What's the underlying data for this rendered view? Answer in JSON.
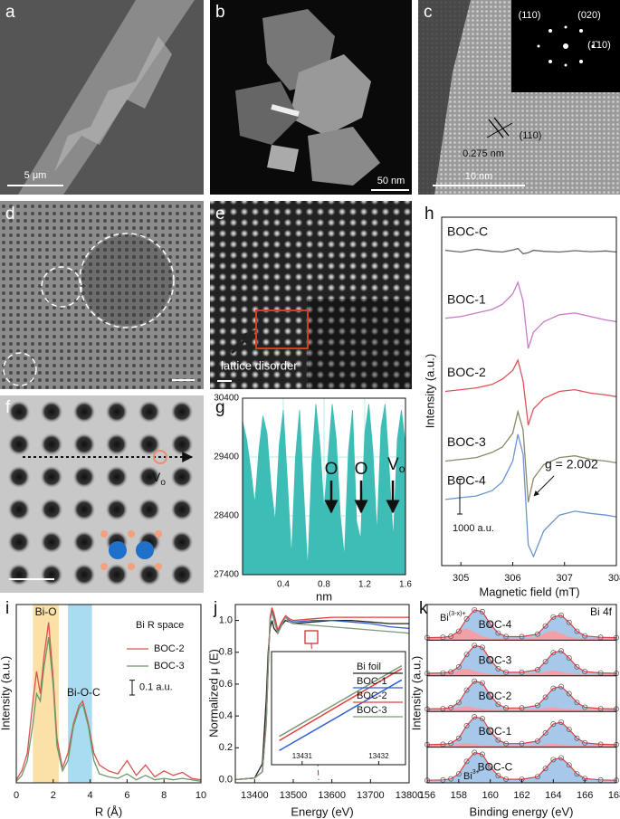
{
  "panels": {
    "a": {
      "letter": "a",
      "scale_label": "5 μm"
    },
    "b": {
      "letter": "b",
      "scale_label": "50 nm"
    },
    "c": {
      "letter": "c",
      "scale_label": "10 nm",
      "fft_labels": [
        "(110)",
        "(020)",
        "(1̄10)"
      ],
      "plane": "(110)",
      "spacing": "0.275 nm"
    },
    "d": {
      "letter": "d"
    },
    "e": {
      "letter": "e",
      "annotation": "lattice disorder"
    },
    "f": {
      "letter": "f",
      "vacancy": {
        "text": "V",
        "sub": "o"
      }
    }
  },
  "chart_data": [
    {
      "type": "area",
      "letter": "g",
      "x_label": "nm",
      "color": "#3dbdb5",
      "grid": true,
      "xlim": [
        0,
        1.6
      ],
      "ylim": [
        27400,
        30400
      ],
      "xticks": [
        0.4,
        0.8,
        1.2,
        1.6
      ],
      "yticks": [
        27400,
        28400,
        29400,
        30400
      ],
      "x": [
        0,
        0.04,
        0.08,
        0.12,
        0.16,
        0.2,
        0.24,
        0.28,
        0.32,
        0.36,
        0.4,
        0.44,
        0.48,
        0.52,
        0.56,
        0.6,
        0.64,
        0.68,
        0.72,
        0.76,
        0.8,
        0.84,
        0.88,
        0.92,
        0.96,
        1,
        1.04,
        1.08,
        1.12,
        1.16,
        1.2,
        1.24,
        1.28,
        1.32,
        1.36,
        1.4,
        1.44,
        1.48,
        1.52,
        1.56,
        1.6
      ],
      "values": [
        30000,
        29700,
        29200,
        28600,
        29500,
        30100,
        29800,
        28900,
        28300,
        29600,
        30200,
        29000,
        27700,
        29400,
        30200,
        28800,
        27500,
        29300,
        30300,
        29600,
        28500,
        29400,
        30300,
        29700,
        28400,
        27700,
        29500,
        30200,
        28300,
        28000,
        29800,
        30300,
        29500,
        28100,
        29900,
        30300,
        29200,
        28000,
        29700,
        30200,
        29600
      ],
      "annotations": [
        {
          "text": "O"
        },
        {
          "text": "O"
        },
        {
          "text": "V",
          "sub": "o"
        }
      ]
    },
    {
      "type": "line",
      "letter": "h",
      "x_label": "Magnetic field (mT)",
      "y_label": "Intensity (a.u.)",
      "xlim": [
        304.63,
        308
      ],
      "ylim": [
        0,
        10000
      ],
      "xticks": [
        305,
        306,
        307,
        308
      ],
      "x": [
        304.7,
        305.0,
        305.3,
        305.6,
        305.8,
        306.0,
        306.1,
        306.2,
        306.3,
        306.4,
        306.6,
        306.9,
        307.2,
        307.5,
        307.8,
        308.0
      ],
      "series": [
        {
          "name": "BOC-C",
          "color": "#666666",
          "values": [
            9050,
            9000,
            9080,
            9020,
            9000,
            9060,
            9100,
            8950,
            8980,
            9050,
            9020,
            9000,
            9040,
            9010,
            9030,
            9000
          ]
        },
        {
          "name": "BOC-1",
          "color": "#c87cc8",
          "values": [
            7100,
            7150,
            7250,
            7350,
            7500,
            7800,
            8130,
            7600,
            6230,
            6700,
            7000,
            7200,
            7250,
            7150,
            7050,
            7000
          ]
        },
        {
          "name": "BOC-2",
          "color": "#e0525a",
          "values": [
            5000,
            5050,
            5100,
            5200,
            5350,
            5600,
            5900,
            5300,
            4030,
            4500,
            4800,
            5000,
            5050,
            4950,
            4900,
            4850
          ]
        },
        {
          "name": "BOC-3",
          "color": "#8a8a6a",
          "values": [
            3000,
            3050,
            3100,
            3250,
            3400,
            3800,
            4420,
            3900,
            1820,
            2500,
            2900,
            3100,
            3150,
            3050,
            3000,
            2950
          ]
        },
        {
          "name": "BOC-4",
          "color": "#6a94d0",
          "values": [
            1900,
            1950,
            2000,
            2150,
            2400,
            3000,
            3770,
            3200,
            600,
            260,
            1000,
            1450,
            1560,
            1500,
            1450,
            1400
          ]
        }
      ],
      "annotation": "g = 2.002",
      "scale_bar": {
        "value": 1000,
        "label": "1000 a.u."
      }
    },
    {
      "type": "line",
      "letter": "i",
      "title": "Bi R space",
      "x_label": "R (Å)",
      "y_label": "Intensity (a.u.)",
      "xlim": [
        0,
        10
      ],
      "ylim": [
        0,
        1.2
      ],
      "xticks": [
        0,
        2,
        4,
        6,
        8,
        10
      ],
      "x": [
        0,
        0.3,
        0.6,
        0.9,
        1.1,
        1.3,
        1.5,
        1.75,
        2.0,
        2.2,
        2.5,
        2.8,
        3.1,
        3.4,
        3.6,
        3.9,
        4.2,
        4.5,
        5,
        5.5,
        6,
        6.5,
        7,
        7.5,
        8,
        8.5,
        9,
        9.5,
        10
      ],
      "series": [
        {
          "name": "BOC-2",
          "color": "#d9534f",
          "values": [
            0.02,
            0.08,
            0.2,
            0.55,
            0.75,
            0.6,
            0.85,
            1.08,
            0.7,
            0.3,
            0.1,
            0.2,
            0.4,
            0.52,
            0.55,
            0.4,
            0.2,
            0.12,
            0.08,
            0.06,
            0.15,
            0.05,
            0.12,
            0.04,
            0.08,
            0.05,
            0.07,
            0.03,
            0.02
          ]
        },
        {
          "name": "BOC-3",
          "color": "#6a9a6a",
          "values": [
            0.01,
            0.05,
            0.15,
            0.4,
            0.6,
            0.55,
            0.78,
            0.98,
            0.65,
            0.25,
            0.08,
            0.15,
            0.38,
            0.5,
            0.53,
            0.38,
            0.15,
            0.06,
            0.04,
            0.03,
            0.06,
            0.02,
            0.05,
            0.02,
            0.03,
            0.02,
            0.03,
            0.02,
            0.01
          ]
        }
      ],
      "regions": [
        {
          "label": "Bi-O",
          "range": [
            0.9,
            2.3
          ],
          "color": "#fbe0a8"
        },
        {
          "label": "Bi-O-C",
          "range": [
            2.8,
            4.1
          ],
          "color": "#a9dcf0"
        }
      ],
      "scale_bar": {
        "value": 0.1,
        "label": "0.1 a.u."
      }
    },
    {
      "type": "line",
      "letter": "j",
      "x_label": "Energy (eV)",
      "y_label": "Normalized μ (E)",
      "xlim": [
        13350,
        13800
      ],
      "ylim": [
        -0.02,
        1.1
      ],
      "xticks": [
        13400,
        13500,
        13600,
        13700,
        13800
      ],
      "yticks": [
        {
          "value": 0,
          "label": "0.0"
        },
        0.2,
        0.4,
        0.6,
        0.8,
        {
          "value": 1,
          "label": "1.0"
        }
      ],
      "x": [
        13350,
        13400,
        13420,
        13430,
        13435,
        13440,
        13445,
        13450,
        13460,
        13470,
        13480,
        13490,
        13500,
        13550,
        13600,
        13650,
        13700,
        13750,
        13800
      ],
      "series": [
        {
          "name": "Bi foil",
          "color": "#222222",
          "values": [
            0,
            0.01,
            0.1,
            0.5,
            0.8,
            0.95,
            1.0,
            0.95,
            0.92,
            0.97,
            1.0,
            0.99,
            0.98,
            0.99,
            1.0,
            1.0,
            0.99,
            0.98,
            0.98
          ]
        },
        {
          "name": "BOC-1",
          "color": "#2f5fd0",
          "values": [
            0,
            0.01,
            0.05,
            0.35,
            0.7,
            1.0,
            1.06,
            1.02,
            0.93,
            0.98,
            1.02,
            1.0,
            0.99,
            1.0,
            1.0,
            0.99,
            0.98,
            0.96,
            0.95
          ]
        },
        {
          "name": "BOC-2",
          "color": "#e0403a",
          "values": [
            0,
            0.01,
            0.05,
            0.36,
            0.72,
            1.02,
            1.08,
            1.04,
            0.94,
            0.99,
            1.03,
            1.01,
            1.0,
            1.01,
            1.02,
            1.02,
            1.02,
            1.02,
            1.02
          ]
        },
        {
          "name": "BOC-3",
          "color": "#7a9a7a",
          "values": [
            0,
            0.01,
            0.05,
            0.34,
            0.7,
            1.0,
            1.05,
            1.0,
            0.92,
            0.97,
            1.02,
            0.99,
            0.98,
            0.97,
            0.96,
            0.95,
            0.94,
            0.93,
            0.92
          ]
        }
      ],
      "inset": {
        "xlim": [
          13430.6,
          13432.35
        ],
        "ylim": [
          0.1,
          0.9
        ],
        "xticks": [
          13431,
          13432
        ],
        "x": [
          13430.7,
          13432.3
        ],
        "series": [
          {
            "color": "#2f5fd0",
            "values": [
              0.2,
              0.7
            ]
          },
          {
            "color": "#e0403a",
            "values": [
              0.27,
              0.78
            ]
          },
          {
            "color": "#7a9a7a",
            "values": [
              0.3,
              0.8
            ]
          }
        ]
      }
    },
    {
      "type": "xps",
      "letter": "k",
      "title": "Bi 4f",
      "x_label": "Binding energy (eV)",
      "y_label": "Intensity (a.u.)",
      "xlim": [
        156,
        168
      ],
      "ylim": [
        0,
        5
      ],
      "xticks": [
        156,
        158,
        160,
        162,
        164,
        166,
        168
      ],
      "fit_color": "#e04040",
      "peak_color": "#a8c8ea",
      "component_color": "#f2a0a8",
      "x": [
        156,
        157,
        157.5,
        158,
        158.5,
        159,
        159.5,
        160,
        160.5,
        161,
        162,
        163,
        163.5,
        164,
        164.5,
        165,
        165.5,
        166,
        167,
        168
      ],
      "series": [
        {
          "name": "BOC-4",
          "values": [
            4.07,
            4.08,
            4.11,
            4.25,
            4.6,
            4.85,
            4.8,
            4.45,
            4.2,
            4.1,
            4.1,
            4.17,
            4.4,
            4.65,
            4.7,
            4.5,
            4.25,
            4.12,
            4.08,
            4.07
          ],
          "component_values": [
            4.05,
            4.06,
            4.11,
            4.27,
            4.33,
            4.23,
            4.11,
            4.06,
            4.05,
            4.05,
            4.05,
            4.08,
            4.21,
            4.27,
            4.19,
            4.09,
            4.06,
            4.05,
            4.05,
            4.05
          ]
        },
        {
          "name": "BOC-3",
          "values": [
            3.07,
            3.08,
            3.11,
            3.25,
            3.6,
            3.85,
            3.8,
            3.45,
            3.2,
            3.1,
            3.1,
            3.17,
            3.4,
            3.65,
            3.7,
            3.5,
            3.25,
            3.12,
            3.08,
            3.07
          ],
          "component_values": [
            3.05,
            3.05,
            3.08,
            3.16,
            3.2,
            3.14,
            3.08,
            3.05,
            3.05,
            3.05,
            3.05,
            3.07,
            3.12,
            3.16,
            3.11,
            3.07,
            3.05,
            3.05,
            3.05,
            3.05
          ]
        },
        {
          "name": "BOC-2",
          "values": [
            2.07,
            2.08,
            2.11,
            2.25,
            2.6,
            2.85,
            2.8,
            2.45,
            2.2,
            2.1,
            2.1,
            2.17,
            2.4,
            2.65,
            2.7,
            2.5,
            2.25,
            2.12,
            2.08,
            2.07
          ],
          "component_values": [
            2.05,
            2.05,
            2.07,
            2.12,
            2.15,
            2.11,
            2.07,
            2.05,
            2.05,
            2.05,
            2.05,
            2.06,
            2.1,
            2.12,
            2.09,
            2.06,
            2.05,
            2.05,
            2.05,
            2.05
          ]
        },
        {
          "name": "BOC-1",
          "values": [
            1.07,
            1.08,
            1.11,
            1.25,
            1.6,
            1.85,
            1.8,
            1.45,
            1.2,
            1.1,
            1.1,
            1.17,
            1.4,
            1.65,
            1.7,
            1.5,
            1.25,
            1.12,
            1.08,
            1.07
          ],
          "component_values": [
            1.05,
            1.05,
            1.06,
            1.1,
            1.12,
            1.09,
            1.06,
            1.05,
            1.05,
            1.05,
            1.05,
            1.05,
            1.08,
            1.1,
            1.07,
            1.05,
            1.05,
            1.05,
            1.05,
            1.05
          ]
        },
        {
          "name": "BOC-C",
          "values": [
            0.07,
            0.08,
            0.11,
            0.25,
            0.6,
            0.85,
            0.8,
            0.45,
            0.2,
            0.1,
            0.1,
            0.17,
            0.4,
            0.65,
            0.7,
            0.5,
            0.25,
            0.12,
            0.08,
            0.07
          ]
        }
      ],
      "labels": [
        {
          "text": "Bi",
          "sup": "(3-x)+"
        },
        {
          "text": "Bi",
          "sup": "3+"
        }
      ]
    }
  ]
}
